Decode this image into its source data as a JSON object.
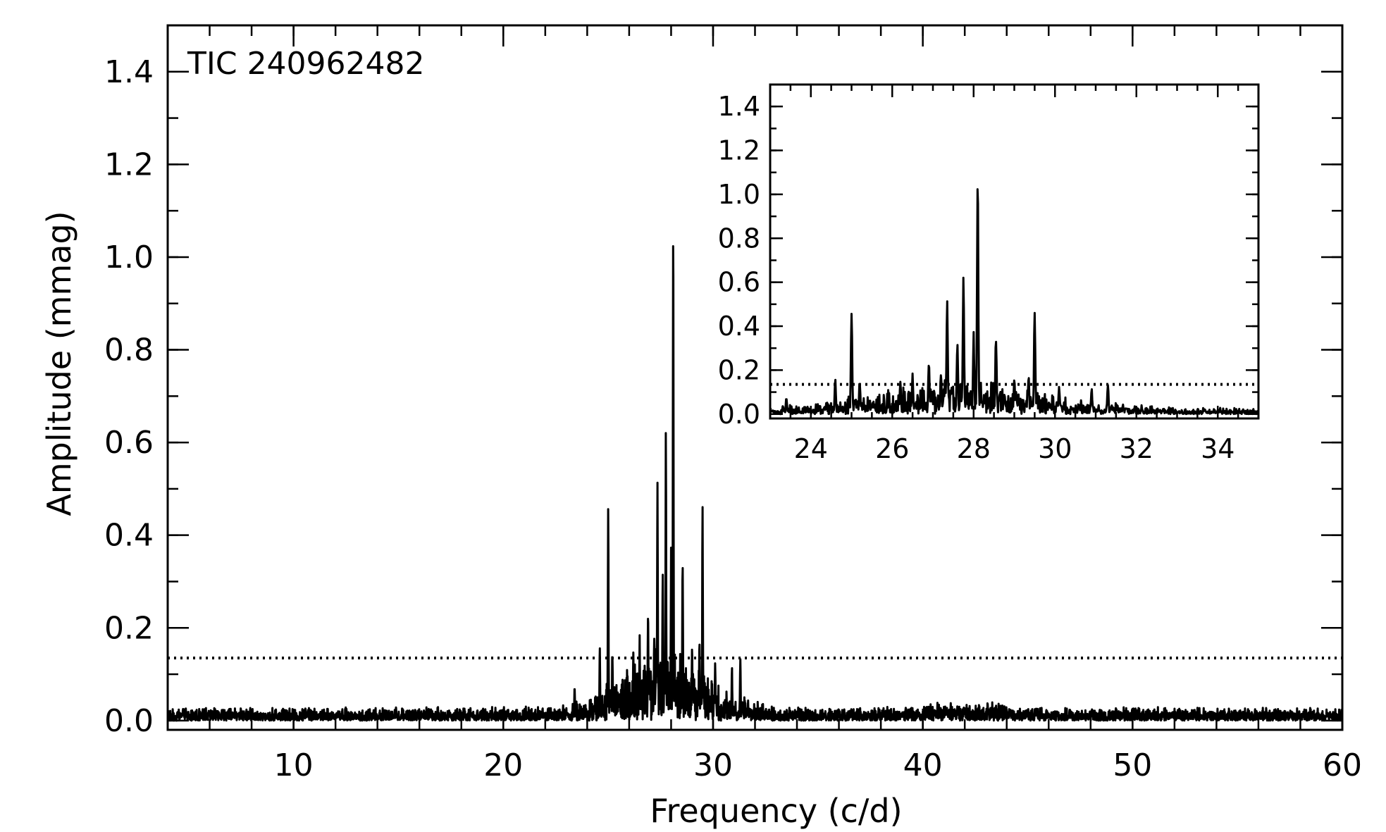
{
  "chart_data": [
    {
      "type": "line",
      "annotation": "TIC 240962482",
      "xlabel": "Frequency (c/d)",
      "ylabel": "Amplitude (mmag)",
      "xlim": [
        4,
        60
      ],
      "ylim": [
        -0.02,
        1.5
      ],
      "x_ticks": [
        "10",
        "20",
        "30",
        "40",
        "50",
        "60"
      ],
      "y_ticks": [
        "0.0",
        "0.2",
        "0.4",
        "0.6",
        "0.8",
        "1.0",
        "1.2",
        "1.4"
      ],
      "significance_threshold": 0.135,
      "peaks": [
        {
          "x": 23.4,
          "y": 0.08
        },
        {
          "x": 24.6,
          "y": 0.17
        },
        {
          "x": 25.0,
          "y": 0.51
        },
        {
          "x": 25.2,
          "y": 0.16
        },
        {
          "x": 26.2,
          "y": 0.16
        },
        {
          "x": 26.5,
          "y": 0.19
        },
        {
          "x": 26.9,
          "y": 0.25
        },
        {
          "x": 27.2,
          "y": 0.2
        },
        {
          "x": 27.35,
          "y": 0.58
        },
        {
          "x": 27.6,
          "y": 0.36
        },
        {
          "x": 27.75,
          "y": 0.69
        },
        {
          "x": 28.0,
          "y": 0.38
        },
        {
          "x": 28.1,
          "y": 1.15
        },
        {
          "x": 28.55,
          "y": 0.38
        },
        {
          "x": 29.0,
          "y": 0.17
        },
        {
          "x": 29.35,
          "y": 0.18
        },
        {
          "x": 29.5,
          "y": 0.49
        },
        {
          "x": 30.1,
          "y": 0.13
        },
        {
          "x": 30.9,
          "y": 0.12
        },
        {
          "x": 31.3,
          "y": 0.15
        }
      ],
      "noise_level": 0.02
    },
    {
      "type": "line",
      "role": "inset",
      "xlim": [
        23,
        35
      ],
      "ylim": [
        -0.02,
        1.5
      ],
      "x_ticks": [
        "24",
        "26",
        "28",
        "30",
        "32",
        "34"
      ],
      "y_ticks": [
        "0.0",
        "0.2",
        "0.4",
        "0.6",
        "0.8",
        "1.0",
        "1.2",
        "1.4"
      ],
      "significance_threshold": 0.135
    }
  ]
}
